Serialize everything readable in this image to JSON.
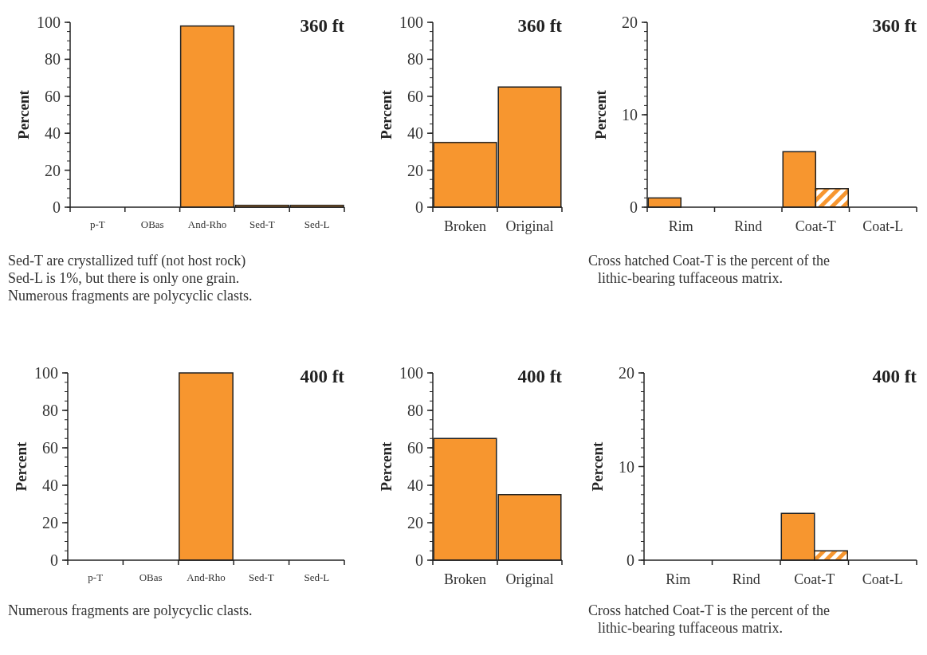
{
  "chart_data": [
    {
      "type": "bar",
      "title": "360 ft",
      "ylabel": "Percent",
      "categories": [
        "p-T",
        "OBas",
        "And-Rho",
        "Sed-T",
        "Sed-L"
      ],
      "values": [
        0,
        0,
        98,
        1,
        1
      ],
      "color": "#f7962f",
      "ylim": [
        0,
        100
      ],
      "yticks": [
        0,
        20,
        40,
        60,
        80,
        100
      ],
      "annotations": [
        "Sed-T are crystallized tuff (not host rock)",
        "Sed-L is 1%, but there is only one grain.",
        "Numerous fragments are polycyclic clasts."
      ]
    },
    {
      "type": "bar",
      "title": "360 ft",
      "ylabel": "Percent",
      "categories": [
        "Broken",
        "Original"
      ],
      "values": [
        35,
        65
      ],
      "color": "#f7962f",
      "ylim": [
        0,
        100
      ],
      "yticks": [
        0,
        20,
        40,
        60,
        80,
        100
      ]
    },
    {
      "type": "bar",
      "title": "360 ft",
      "ylabel": "Percent",
      "categories": [
        "Rim",
        "Rind",
        "Coat-T",
        "Coat-L"
      ],
      "series": [
        {
          "color": "#f7962f",
          "values": [
            1,
            0,
            6,
            0
          ]
        },
        {
          "color": "#f7962f",
          "values": [
            0,
            0,
            2,
            0
          ]
        }
      ],
      "ylim": [
        0,
        20
      ],
      "yticks": [
        0,
        10,
        20
      ],
      "annotations": [
        "Cross hatched Coat-T is the percent of the lithic-bearing tuffaceous matrix."
      ]
    },
    {
      "type": "bar",
      "title": "400 ft",
      "ylabel": "Percent",
      "categories": [
        "p-T",
        "OBas",
        "And-Rho",
        "Sed-T",
        "Sed-L"
      ],
      "values": [
        0,
        0,
        100,
        0,
        0
      ],
      "color": "#f7962f",
      "ylim": [
        0,
        100
      ],
      "yticks": [
        0,
        20,
        40,
        60,
        80,
        100
      ],
      "annotations": [
        "Numerous fragments are polycyclic clasts."
      ]
    },
    {
      "type": "bar",
      "title": "400 ft",
      "ylabel": "Percent",
      "categories": [
        "Broken",
        "Original"
      ],
      "values": [
        65,
        35
      ],
      "color": "#f7962f",
      "ylim": [
        0,
        100
      ],
      "yticks": [
        0,
        20,
        40,
        60,
        80,
        100
      ]
    },
    {
      "type": "bar",
      "title": "400 ft",
      "ylabel": "Percent",
      "categories": [
        "Rim",
        "Rind",
        "Coat-T",
        "Coat-L"
      ],
      "series": [
        {
          "color": "#f7962f",
          "values": [
            0,
            0,
            5,
            0
          ]
        },
        {
          "color": "#f7962f",
          "values": [
            0,
            0,
            1,
            0
          ]
        }
      ],
      "ylim": [
        0,
        20
      ],
      "yticks": [
        0,
        10,
        20
      ],
      "annotations": [
        "Cross hatched Coat-T is the percent of the lithic-bearing tuffaceous matrix."
      ]
    }
  ]
}
